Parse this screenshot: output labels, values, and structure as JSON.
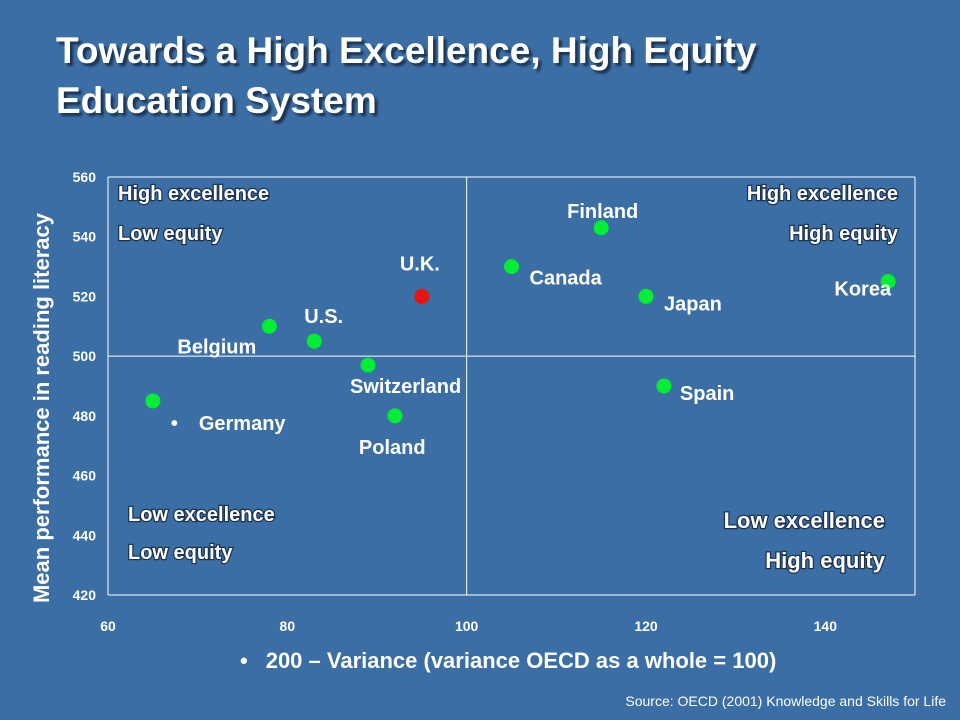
{
  "slide": {
    "title_line1": "Towards a High Excellence, High Equity",
    "title_line2": "Education System",
    "source": "Source: OECD (2001) Knowledge and Skills for Life",
    "x_axis_bullet": "•",
    "background_color": "#3b6ea5"
  },
  "chart_data": {
    "type": "scatter",
    "xlabel": "200 – Variance (variance OECD as a whole = 100)",
    "ylabel": "Mean performance in reading literacy",
    "xlim": [
      60,
      150
    ],
    "ylim": [
      420,
      560
    ],
    "xticks": [
      60,
      80,
      100,
      120,
      140
    ],
    "yticks": [
      420,
      440,
      460,
      480,
      500,
      520,
      540,
      560
    ],
    "grid": false,
    "reference_lines": {
      "x": 100,
      "y": 500
    },
    "colors": {
      "point": "#00ee33",
      "highlight": "#ee1111",
      "axis": "#ffffff"
    },
    "points": [
      {
        "label": "Finland",
        "x": 115,
        "y": 543,
        "highlight": false
      },
      {
        "label": "Canada",
        "x": 105,
        "y": 530,
        "highlight": false
      },
      {
        "label": "Korea",
        "x": 147,
        "y": 525,
        "highlight": false
      },
      {
        "label": "U.K.",
        "x": 95,
        "y": 520,
        "highlight": true
      },
      {
        "label": "Japan",
        "x": 120,
        "y": 520,
        "highlight": false
      },
      {
        "label": "Belgium",
        "x": 78,
        "y": 510,
        "highlight": false
      },
      {
        "label": "U.S.",
        "x": 83,
        "y": 505,
        "highlight": false
      },
      {
        "label": "Switzerland",
        "x": 89,
        "y": 497,
        "highlight": false
      },
      {
        "label": "Spain",
        "x": 122,
        "y": 490,
        "highlight": false
      },
      {
        "label": "Germany",
        "x": 65,
        "y": 485,
        "highlight": false,
        "label_bullet": "•"
      },
      {
        "label": "Poland",
        "x": 92,
        "y": 480,
        "highlight": false
      }
    ],
    "quadrant_labels": [
      {
        "line1": "High excellence",
        "line2": "Low equity",
        "position": "top-left"
      },
      {
        "line1": "High excellence",
        "line2": "High equity",
        "position": "top-right"
      },
      {
        "line1": "Low excellence",
        "line2": "Low equity",
        "position": "bottom-left"
      },
      {
        "line1": "Low excellence",
        "line2": "High equity",
        "position": "bottom-right"
      }
    ]
  }
}
